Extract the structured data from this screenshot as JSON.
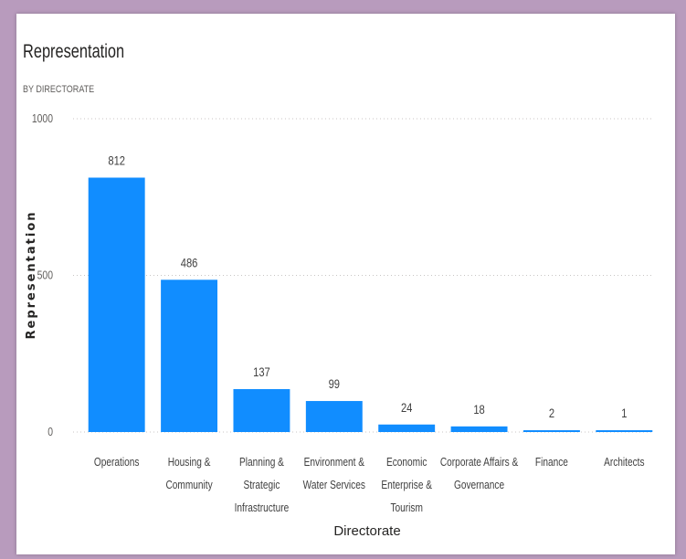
{
  "window": {
    "title": "Representation",
    "subtitle": "BY DIRECTORATE"
  },
  "colors": {
    "background": "#b89bbd",
    "bar": "#118dff",
    "gridline": "#c8c6c4"
  },
  "chart_data": {
    "type": "bar",
    "title": "Representation",
    "subtitle": "BY DIRECTORATE",
    "xlabel": "Directorate",
    "ylabel": "Representation",
    "ylim": [
      0,
      1000
    ],
    "yticks": [
      0,
      500,
      1000
    ],
    "grid": true,
    "legend": "none",
    "categories": [
      [
        "Operations"
      ],
      [
        "Housing &",
        "Community"
      ],
      [
        "Planning &",
        "Strategic",
        "Infrastructure"
      ],
      [
        "Environment &",
        "Water Services"
      ],
      [
        "Economic",
        "Enterprise &",
        "Tourism"
      ],
      [
        "Corporate Affairs &",
        "Governance"
      ],
      [
        "Finance"
      ],
      [
        "Architects"
      ]
    ],
    "values": [
      812,
      486,
      137,
      99,
      24,
      18,
      2,
      1
    ]
  }
}
